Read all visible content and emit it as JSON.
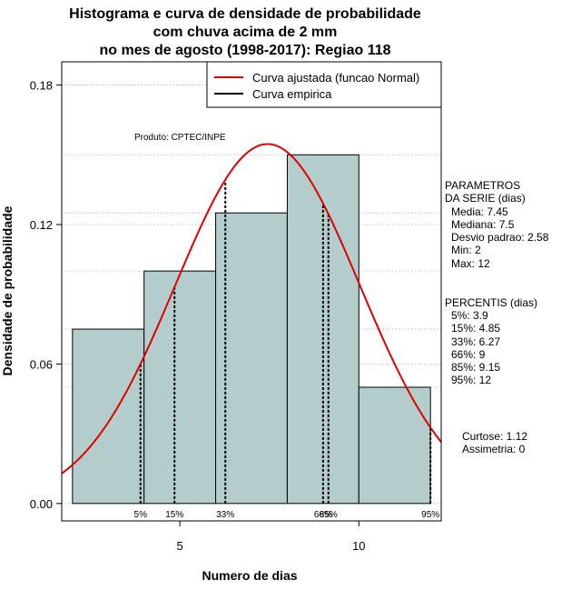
{
  "title_lines": [
    "Histograma e curva de densidade de probabilidade",
    "com chuva acima de 2 mm",
    "no mes de agosto (1998-2017): Regiao 118"
  ],
  "product_label": "Produto: CPTEC/INPE",
  "parameters": {
    "heading": [
      "PARAMETROS",
      "DA SERIE (dias)"
    ],
    "items": [
      "Media: 7.45",
      "Mediana: 7.5",
      "Desvio padrao: 2.58",
      "Min: 2",
      "Max: 12"
    ]
  },
  "percentiles": {
    "heading": "PERCENTIS (dias)",
    "items": [
      "5%: 3.9",
      "15%: 4.85",
      "33%: 6.27",
      "66%: 9",
      "85%: 9.15",
      "95%: 12"
    ]
  },
  "shape": {
    "kurtosis": "Curtose: 1.12",
    "skewness": "Assimetria: 0"
  },
  "colors": {
    "bars": "#b3cccc",
    "normal_curve": "#e00000",
    "empirical_curve": "#000000",
    "grid": "#b0b0b0"
  },
  "chart_data": {
    "type": "bar",
    "xlabel": "Numero de dias",
    "ylabel": "Densidade de probabilidade",
    "xlim": [
      1.7,
      12.3
    ],
    "ylim": [
      -0.0075,
      0.19
    ],
    "xticks": [
      5,
      10
    ],
    "yticks": [
      0.0,
      0.06,
      0.12,
      0.18
    ],
    "ytick_labels": [
      "0.00",
      "0.06",
      "0.12",
      "0.18"
    ],
    "grid": "dotted",
    "legend": {
      "position": "top-right",
      "entries": [
        {
          "label": "Curva ajustada (funcao Normal)",
          "color": "#e00000"
        },
        {
          "label": "Curva empirica",
          "color": "#000000"
        }
      ]
    },
    "bins": [
      {
        "x0": 2,
        "x1": 4,
        "density": 0.075
      },
      {
        "x0": 4,
        "x1": 6,
        "density": 0.1
      },
      {
        "x0": 6,
        "x1": 8,
        "density": 0.125
      },
      {
        "x0": 8,
        "x1": 10,
        "density": 0.15
      },
      {
        "x0": 10,
        "x1": 12,
        "density": 0.05
      }
    ],
    "normal_fit": {
      "mean": 7.45,
      "sd": 2.58
    },
    "percentile_markers": [
      {
        "label": "5%",
        "x": 3.9
      },
      {
        "label": "15%",
        "x": 4.85
      },
      {
        "label": "33%",
        "x": 6.27
      },
      {
        "label": "66%",
        "x": 9.0
      },
      {
        "label": "85%",
        "x": 9.15
      },
      {
        "label": "95%",
        "x": 12.0
      }
    ]
  }
}
